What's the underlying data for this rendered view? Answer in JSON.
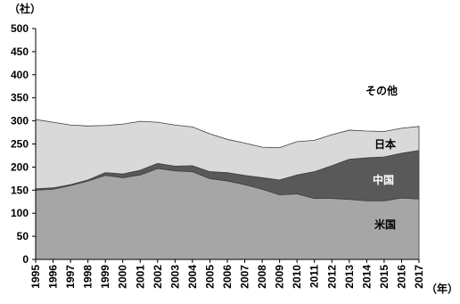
{
  "chart_data": {
    "type": "stacked_area",
    "unit_label": "（社）",
    "x_unit_label": "（年）",
    "categories": [
      "1995",
      "1996",
      "1997",
      "1998",
      "1999",
      "2000",
      "2001",
      "2002",
      "2003",
      "2004",
      "2005",
      "2006",
      "2007",
      "2008",
      "2009",
      "2010",
      "2011",
      "2012",
      "2013",
      "2014",
      "2015",
      "2016",
      "2017"
    ],
    "series": [
      {
        "name": "米国",
        "color": "#a6a6a6",
        "values": [
          150,
          152,
          160,
          170,
          182,
          177,
          183,
          197,
          192,
          190,
          175,
          170,
          162,
          152,
          140,
          142,
          132,
          132,
          130,
          127,
          127,
          133,
          131
        ]
      },
      {
        "name": "中国",
        "color": "#595959",
        "values": [
          3,
          3,
          2,
          2,
          6,
          8,
          10,
          11,
          10,
          13,
          15,
          18,
          20,
          25,
          32,
          41,
          58,
          71,
          87,
          93,
          95,
          97,
          105
        ]
      },
      {
        "name": "日本",
        "color": "#d9d9d9",
        "values": [
          150,
          142,
          129,
          117,
          102,
          108,
          106,
          89,
          89,
          84,
          82,
          72,
          70,
          66,
          70,
          72,
          68,
          67,
          63,
          58,
          55,
          54,
          52
        ]
      }
    ],
    "annotation": "その他",
    "ylim": [
      0,
      500
    ],
    "yticks": [
      0,
      50,
      100,
      150,
      200,
      250,
      300,
      350,
      400,
      450,
      500
    ]
  }
}
